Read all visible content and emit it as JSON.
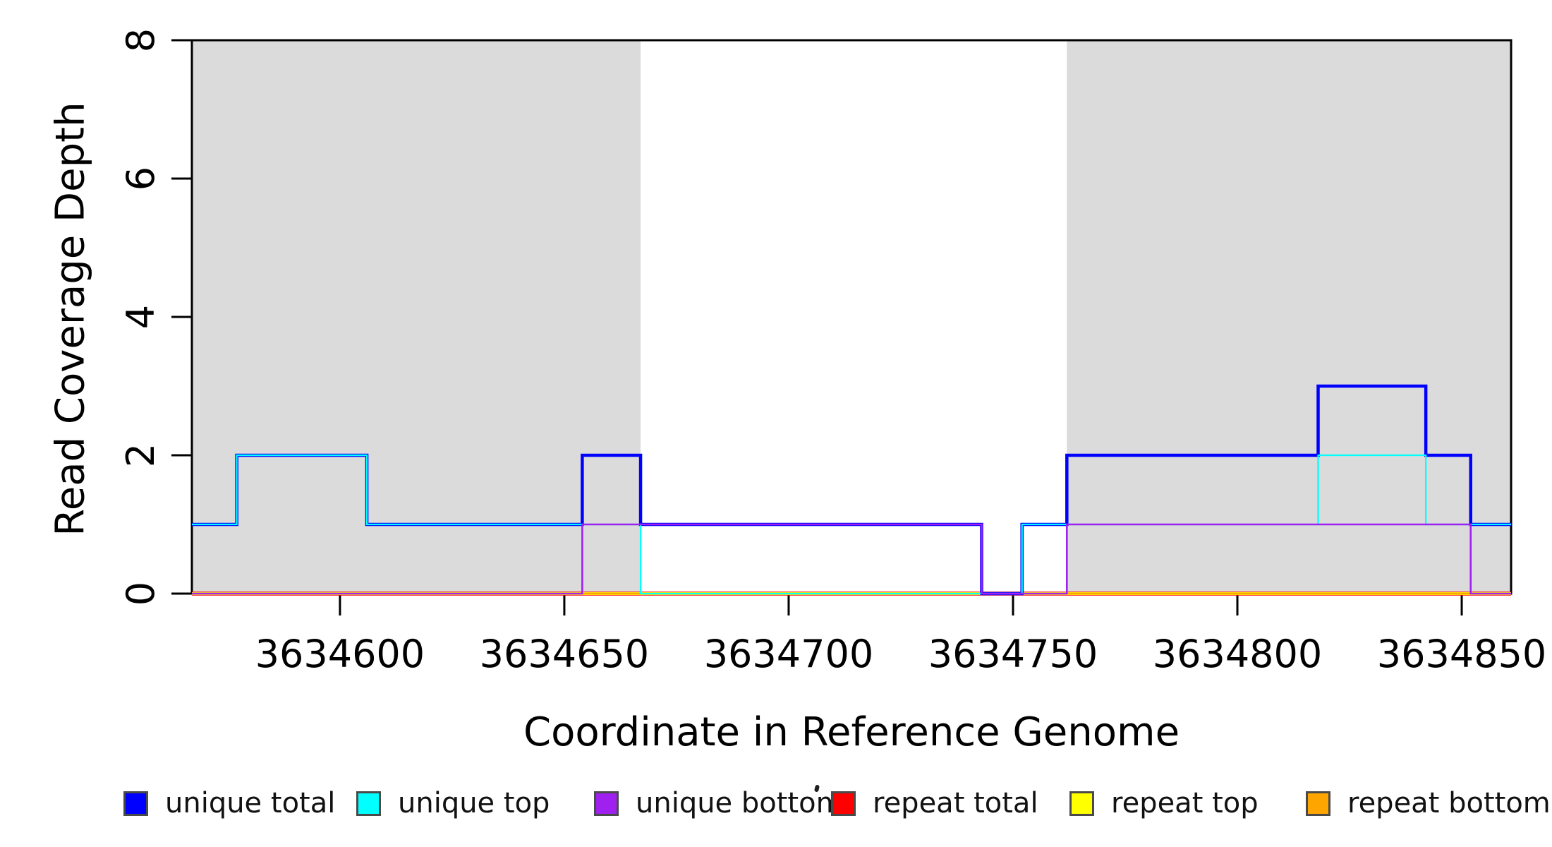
{
  "chart_data": {
    "type": "line",
    "subtype": "step-coverage",
    "title": "",
    "xlabel": "Coordinate in Reference Genome",
    "ylabel": "Read Coverage Depth",
    "xlim": [
      3634567,
      3634861
    ],
    "ylim": [
      0,
      8
    ],
    "xticks": [
      3634600,
      3634650,
      3634700,
      3634750,
      3634800,
      3634850
    ],
    "yticks": [
      0,
      2,
      4,
      6,
      8
    ],
    "grid": false,
    "legend_position": "bottom",
    "axis_color": "#000000",
    "background_shading": {
      "color": "#DBDBDB",
      "regions": [
        {
          "start": 3634567,
          "end": 3634667
        },
        {
          "start": 3634762,
          "end": 3634861
        }
      ]
    },
    "series": [
      {
        "name": "unique total",
        "color": "#0000FF",
        "steps": [
          [
            3634567,
            1
          ],
          [
            3634577,
            2
          ],
          [
            3634606,
            1
          ],
          [
            3634654,
            2
          ],
          [
            3634667,
            1
          ],
          [
            3634743,
            0
          ],
          [
            3634752,
            1
          ],
          [
            3634762,
            2
          ],
          [
            3634818,
            3
          ],
          [
            3634842,
            2
          ],
          [
            3634852,
            1
          ]
        ]
      },
      {
        "name": "unique top",
        "color": "#00FFFF",
        "steps": [
          [
            3634567,
            1
          ],
          [
            3634577,
            2
          ],
          [
            3634606,
            1
          ],
          [
            3634667,
            0
          ],
          [
            3634752,
            1
          ],
          [
            3634818,
            2
          ],
          [
            3634842,
            1
          ]
        ]
      },
      {
        "name": "unique bottom",
        "color": "#A020F0",
        "steps": [
          [
            3634567,
            0
          ],
          [
            3634654,
            1
          ],
          [
            3634743,
            0
          ],
          [
            3634762,
            1
          ],
          [
            3634852,
            0
          ]
        ]
      },
      {
        "name": "repeat total",
        "color": "#FF0000",
        "steps": [
          [
            3634567,
            0
          ]
        ]
      },
      {
        "name": "repeat top",
        "color": "#FFFF00",
        "steps": [
          [
            3634567,
            0
          ]
        ]
      },
      {
        "name": "repeat bottom",
        "color": "#FFA500",
        "steps": [
          [
            3634567,
            0
          ]
        ]
      }
    ],
    "legend": [
      "unique total",
      "unique top",
      "unique bottom",
      "repeat total",
      "repeat top",
      "repeat bottom"
    ]
  }
}
